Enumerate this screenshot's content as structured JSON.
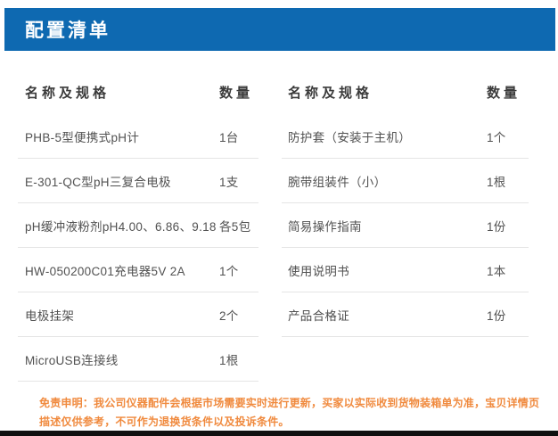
{
  "header": {
    "title": "配置清单"
  },
  "colors": {
    "header_bg": "#0e69b1",
    "header_text": "#ffffff",
    "row_divider": "#e5e5e5",
    "body_text": "#515151",
    "disclaimer_text": "#f08a3e",
    "bottom_bar": "#101010"
  },
  "table": {
    "left": {
      "name_header": "名称及规格",
      "qty_header": "数量",
      "rows": [
        {
          "name": "PHB-5型便携式pH计",
          "qty": "1台"
        },
        {
          "name": "E-301-QC型pH三复合电极",
          "qty": "1支"
        },
        {
          "name": "pH缓冲液粉剂pH4.00、6.86、9.18",
          "qty": "各5包"
        },
        {
          "name": "HW-050200C01充电器5V 2A",
          "qty": "1个"
        },
        {
          "name": "电极挂架",
          "qty": "2个"
        },
        {
          "name": "MicroUSB连接线",
          "qty": "1根"
        }
      ]
    },
    "right": {
      "name_header": "名称及规格",
      "qty_header": "数量",
      "rows": [
        {
          "name": "防护套（安装于主机）",
          "qty": "1个"
        },
        {
          "name": "腕带组装件（小）",
          "qty": "1根"
        },
        {
          "name": "简易操作指南",
          "qty": "1份"
        },
        {
          "name": "使用说明书",
          "qty": "1本"
        },
        {
          "name": "产品合格证",
          "qty": "1份"
        }
      ]
    }
  },
  "disclaimer": {
    "lines": [
      "免责申明：我公司仪器配件会根据市场需要实时进行更新，买家以实际收到货物装箱单为准，宝贝详情页",
      "描述仅供参考，不可作为退换货条件以及投诉条件。"
    ]
  }
}
